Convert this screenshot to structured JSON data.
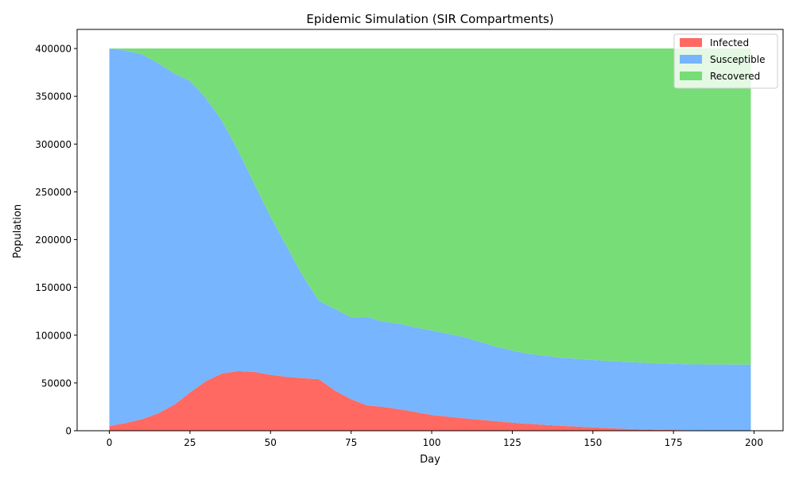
{
  "chart_data": {
    "type": "area",
    "stacked": true,
    "title": "Epidemic Simulation (SIR Compartments)",
    "xlabel": "Day",
    "ylabel": "Population",
    "xlim": [
      -10,
      209
    ],
    "ylim": [
      0,
      420000
    ],
    "x_ticks": [
      0,
      25,
      50,
      75,
      100,
      125,
      150,
      175,
      200
    ],
    "y_ticks": [
      0,
      50000,
      100000,
      150000,
      200000,
      250000,
      300000,
      350000,
      400000
    ],
    "legend_position": "top-right",
    "x": [
      0,
      5,
      10,
      15,
      20,
      22,
      25,
      30,
      35,
      40,
      45,
      50,
      55,
      60,
      65,
      70,
      75,
      80,
      85,
      90,
      95,
      100,
      110,
      120,
      125,
      130,
      140,
      150,
      160,
      170,
      180,
      190,
      199
    ],
    "series": [
      {
        "name": "Infected",
        "color": "#ff6961",
        "values": [
          5000,
          8000,
          12000,
          18000,
          27000,
          32000,
          40000,
          52000,
          60000,
          62500,
          61500,
          58500,
          56500,
          55000,
          54000,
          42000,
          33000,
          26500,
          25000,
          22500,
          19500,
          16500,
          13000,
          10000,
          8500,
          7200,
          5200,
          3500,
          2000,
          1000,
          500,
          300,
          200
        ]
      },
      {
        "name": "Susceptible",
        "color": "#77b5fe",
        "values": [
          395000,
          390000,
          382000,
          367000,
          347000,
          339000,
          326000,
          296000,
          264000,
          230500,
          196500,
          165500,
          136500,
          107000,
          82000,
          85500,
          85500,
          92500,
          89000,
          89500,
          88500,
          88500,
          85000,
          78000,
          75500,
          73300,
          71300,
          70500,
          70000,
          69500,
          69000,
          69000,
          69000
        ]
      },
      {
        "name": "Recovered",
        "color": "#77dd77",
        "values": [
          0,
          2000,
          6000,
          15000,
          26000,
          29000,
          34000,
          52000,
          76000,
          107000,
          142000,
          176000,
          207000,
          238000,
          264000,
          272500,
          281500,
          281000,
          286000,
          288000,
          292000,
          295000,
          302000,
          312000,
          316000,
          319500,
          323500,
          326000,
          328000,
          329500,
          330500,
          330700,
          330800
        ]
      }
    ]
  }
}
